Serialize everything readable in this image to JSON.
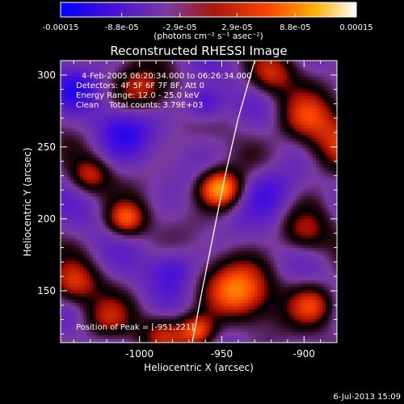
{
  "colorbar": {
    "tick_labels": [
      "-0.00015",
      "-8.8e-05",
      "-2.9e-05",
      "2.9e-05",
      "8.8e-05",
      "0.00015"
    ],
    "tick_values": [
      -0.00015,
      -8.8e-05,
      -2.9e-05,
      2.9e-05,
      8.8e-05,
      0.00015
    ],
    "range": [
      -0.00015,
      0.00015
    ],
    "units_label": "(photons cm⁻² s⁻¹ asec⁻²)",
    "colors": [
      "#0000ff",
      "#5a00c8",
      "#7a3aa0",
      "#b8230a",
      "#ff4a00",
      "#ffb000",
      "#ffffff"
    ]
  },
  "title": "Reconstructed RHESSI Image",
  "annotations": {
    "time_range": "4-Feb-2005 06:20:34.000 to 06:26:34.000",
    "detectors": "Detectors: 4F 5F 6F 7F 8F, Att 0",
    "energy": "Energy Range: 12.0 - 25.0 keV",
    "clean": "Clean    Total counts: 3.79E+03",
    "peak": "Position of Peak = [-951,221]"
  },
  "footer": {
    "timestamp": "6-Jul-2013 15:09"
  },
  "chart_data": {
    "type": "heatmap",
    "title": "Reconstructed RHESSI Image",
    "xlabel": "Heliocentric X (arcsec)",
    "ylabel": "Heliocentric Y (arcsec)",
    "xlim": [
      -1048,
      -880
    ],
    "ylim": [
      114,
      310
    ],
    "x_ticks": [
      -1000,
      -950,
      -900
    ],
    "x_tick_labels": [
      "-1000",
      "-950",
      "-900"
    ],
    "y_ticks": [
      150,
      200,
      250,
      300
    ],
    "y_tick_labels": [
      "150",
      "200",
      "250",
      "300"
    ],
    "peak": {
      "x": -951,
      "y": 221
    },
    "limb_curve": [
      [
        -968,
        114
      ],
      [
        -962,
        150
      ],
      [
        -955,
        190
      ],
      [
        -948,
        230
      ],
      [
        -940,
        270
      ],
      [
        -930,
        310
      ]
    ],
    "sources": [
      {
        "x": -951,
        "y": 221,
        "sigma": 9,
        "amplitude": 0.00015
      },
      {
        "x": -940,
        "y": 150,
        "sigma": 14,
        "amplitude": 0.00012
      },
      {
        "x": -965,
        "y": 122,
        "sigma": 8,
        "amplitude": 0.00011
      },
      {
        "x": -1008,
        "y": 200,
        "sigma": 8,
        "amplitude": 0.0001
      },
      {
        "x": -900,
        "y": 270,
        "sigma": 12,
        "amplitude": 8e-05
      },
      {
        "x": -895,
        "y": 140,
        "sigma": 10,
        "amplitude": 9e-05
      },
      {
        "x": -880,
        "y": 250,
        "sigma": 14,
        "amplitude": 8e-05
      },
      {
        "x": -1030,
        "y": 230,
        "sigma": 8,
        "amplitude": 7e-05
      },
      {
        "x": -1040,
        "y": 155,
        "sigma": 10,
        "amplitude": 8e-05
      },
      {
        "x": -1000,
        "y": 290,
        "sigma": 11,
        "amplitude": 7e-05
      },
      {
        "x": -1020,
        "y": 130,
        "sigma": 10,
        "amplitude": 6e-05
      },
      {
        "x": -985,
        "y": 120,
        "sigma": 9,
        "amplitude": 6e-05
      },
      {
        "x": -920,
        "y": 300,
        "sigma": 10,
        "amplitude": 7e-05
      },
      {
        "x": -900,
        "y": 190,
        "sigma": 10,
        "amplitude": 6e-05
      },
      {
        "x": -960,
        "y": 280,
        "sigma": 8,
        "amplitude": -7e-05
      },
      {
        "x": -1010,
        "y": 260,
        "sigma": 12,
        "amplitude": -6e-05
      },
      {
        "x": -920,
        "y": 220,
        "sigma": 12,
        "amplitude": -6e-05
      },
      {
        "x": -980,
        "y": 165,
        "sigma": 10,
        "amplitude": -5e-05
      },
      {
        "x": -1040,
        "y": 290,
        "sigma": 10,
        "amplitude": -6e-05
      }
    ],
    "grid": false
  }
}
